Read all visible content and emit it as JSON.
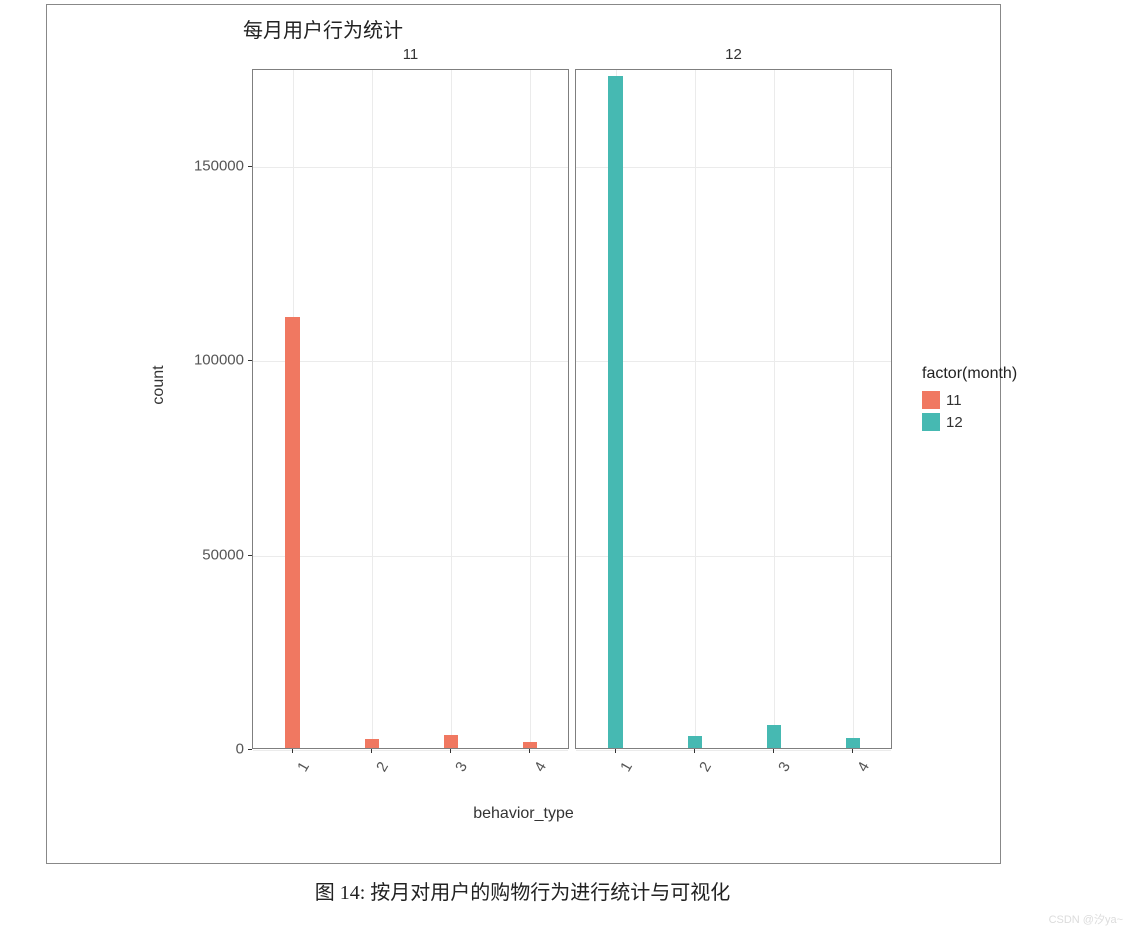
{
  "chart": {
    "title": "每月用户行为统计",
    "type": "bar-faceted",
    "background_color": "#ffffff",
    "panel_border_color": "#7f7f7f",
    "grid_color": "#ebebeb",
    "tick_color": "#333333",
    "ylabel": "count",
    "xlabel": "behavior_type",
    "label_fontsize": 16,
    "tick_fontsize": 15,
    "title_fontsize": 20,
    "ylim": [
      0,
      175000
    ],
    "y_ticks": [
      0,
      50000,
      100000,
      150000
    ],
    "bar_width_ratio": 0.18,
    "facet_var_label": "factor(month)",
    "facets": [
      {
        "key": "11",
        "label": "11",
        "color": "#f07861",
        "categories": [
          "1",
          "2",
          "3",
          "4"
        ],
        "values": [
          111000,
          2300,
          3400,
          1500
        ]
      },
      {
        "key": "12",
        "label": "12",
        "color": "#46b9b2",
        "categories": [
          "1",
          "2",
          "3",
          "4"
        ],
        "values": [
          173000,
          3000,
          5800,
          2600
        ]
      }
    ]
  },
  "legend": {
    "title": "factor(month)",
    "items": [
      {
        "label": "11",
        "color": "#f07861"
      },
      {
        "label": "12",
        "color": "#46b9b2"
      }
    ]
  },
  "caption": "图 14: 按月对用户的购物行为进行统计与可视化",
  "watermark": "CSDN @汐ya~"
}
